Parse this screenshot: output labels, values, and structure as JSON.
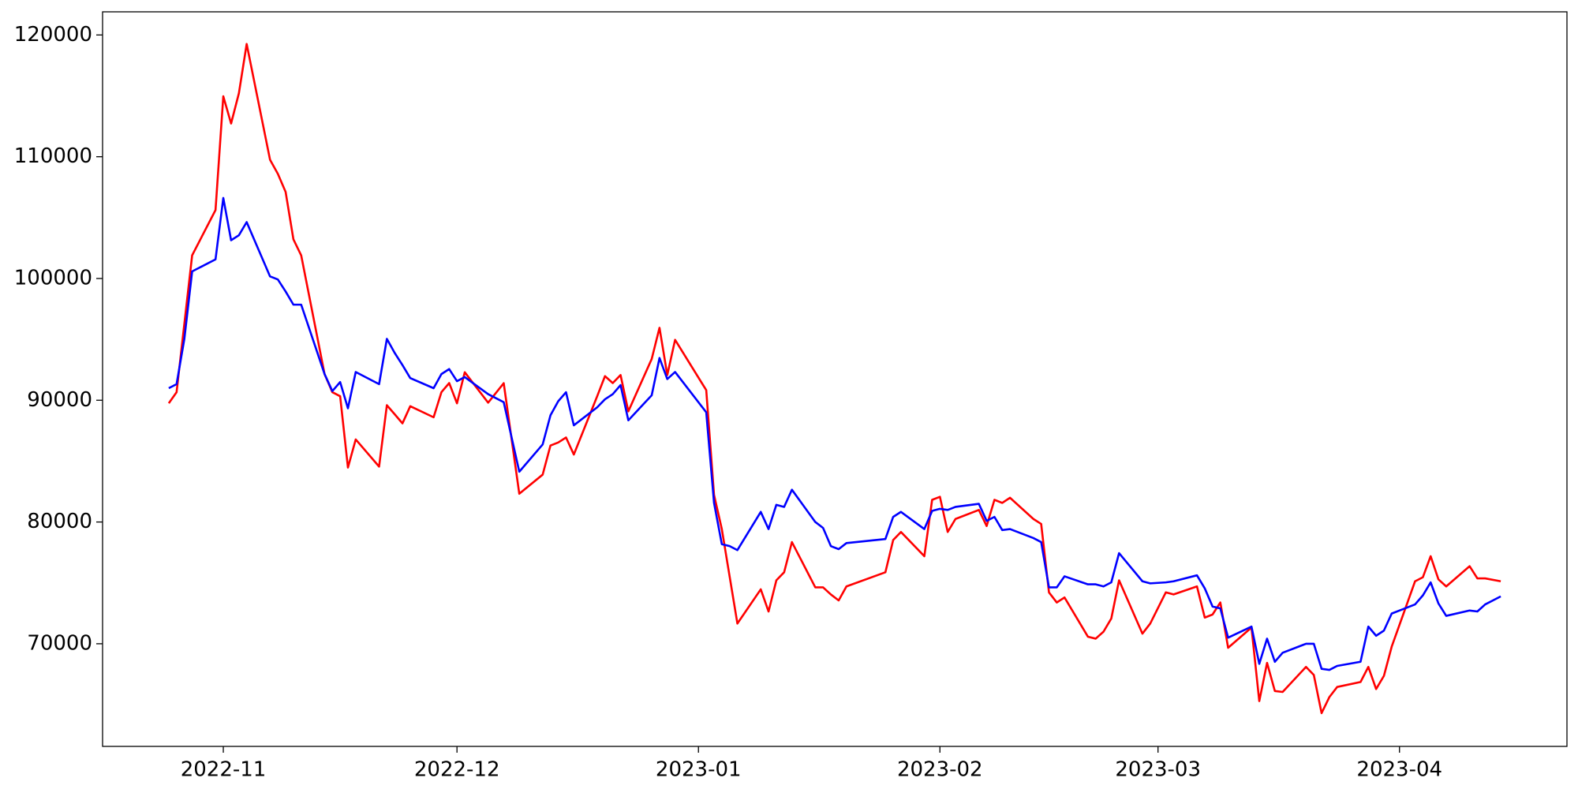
{
  "chart_data": {
    "type": "line",
    "x": [
      -7,
      -6,
      -5,
      -4,
      -1,
      0,
      1,
      2,
      3,
      6,
      7,
      8,
      9,
      10,
      13,
      14,
      15,
      16,
      17,
      20,
      21,
      22,
      23,
      24,
      27,
      28,
      29,
      30,
      31,
      34,
      36,
      38,
      41,
      42,
      43,
      44,
      45,
      48,
      49,
      50,
      51,
      52,
      55,
      56,
      57,
      58,
      62,
      63,
      64,
      65,
      66,
      69,
      70,
      71,
      72,
      73,
      76,
      77,
      78,
      79,
      80,
      85,
      86,
      87,
      90,
      91,
      92,
      93,
      94,
      97,
      98,
      99,
      100,
      101,
      104,
      105,
      106,
      107,
      108,
      111,
      112,
      113,
      114,
      115,
      118,
      119,
      121,
      122,
      125,
      126,
      127,
      128,
      129,
      132,
      133,
      134,
      135,
      136,
      139,
      140,
      141,
      142,
      143,
      146,
      147,
      148,
      149,
      150,
      153,
      154,
      155,
      156,
      157,
      160,
      161,
      162,
      164
    ],
    "series": [
      {
        "color": "#ff0000",
        "values": [
          89750,
          90660,
          96280,
          101900,
          105620,
          114960,
          112730,
          115210,
          119260,
          109750,
          108600,
          107110,
          103220,
          101900,
          92150,
          90660,
          90330,
          84470,
          86780,
          84550,
          89590,
          88850,
          88100,
          89510,
          88600,
          90660,
          91410,
          89750,
          92300,
          89800,
          91400,
          82320,
          83890,
          86280,
          86530,
          86940,
          85540,
          90330,
          91980,
          91410,
          92070,
          89090,
          93390,
          95950,
          92070,
          94960,
          90830,
          82230,
          79420,
          75540,
          71660,
          74470,
          72650,
          75210,
          75870,
          78350,
          74630,
          74630,
          74050,
          73560,
          74710,
          75870,
          78520,
          79180,
          77190,
          81820,
          82070,
          79180,
          80250,
          80990,
          79670,
          81820,
          81570,
          81990,
          80250,
          79840,
          74220,
          73390,
          73800,
          70580,
          70420,
          70990,
          72070,
          75210,
          70830,
          71660,
          74220,
          74050,
          74710,
          72150,
          72400,
          73390,
          69670,
          71330,
          65290,
          68430,
          66120,
          66040,
          68100,
          67440,
          64300,
          65620,
          66450,
          66860,
          68100,
          66280,
          67360,
          69760,
          75130,
          75460,
          77190,
          75290,
          74710,
          76370,
          75370,
          75370,
          75130
        ]
      },
      {
        "color": "#0000ff",
        "values": [
          90990,
          91320,
          95040,
          100580,
          101570,
          106610,
          103140,
          103550,
          104630,
          100170,
          99920,
          98930,
          97850,
          97850,
          92150,
          90750,
          91490,
          89340,
          92320,
          91320,
          95040,
          93890,
          92890,
          91820,
          90990,
          92150,
          92560,
          91570,
          91900,
          90500,
          89840,
          84130,
          86370,
          88760,
          89920,
          90660,
          87940,
          89420,
          90080,
          90500,
          91240,
          88350,
          90410,
          93470,
          91740,
          92320,
          89010,
          81570,
          78180,
          78020,
          77690,
          80830,
          79420,
          81410,
          81240,
          82650,
          80000,
          79510,
          78020,
          77770,
          78270,
          78600,
          80420,
          80830,
          79420,
          80910,
          81080,
          80990,
          81240,
          81490,
          80090,
          80420,
          79340,
          79420,
          78680,
          78350,
          74630,
          74630,
          75540,
          74880,
          74880,
          74710,
          75040,
          77440,
          75130,
          74960,
          75040,
          75130,
          75620,
          74550,
          73060,
          72900,
          70500,
          71410,
          68350,
          70420,
          68520,
          69260,
          70000,
          70000,
          67940,
          67850,
          68180,
          68520,
          71410,
          70660,
          71080,
          72480,
          73230,
          73970,
          75040,
          73310,
          72290,
          72730,
          72650,
          73230,
          73890
        ]
      }
    ],
    "xlim": [
      -15.5,
      172.5
    ],
    "xticks": [
      {
        "value": 0,
        "label": "2022-11"
      },
      {
        "value": 30,
        "label": "2022-12"
      },
      {
        "value": 61,
        "label": "2023-01"
      },
      {
        "value": 92,
        "label": "2023-02"
      },
      {
        "value": 120,
        "label": "2023-03"
      },
      {
        "value": 151,
        "label": "2023-04"
      }
    ],
    "ylim": [
      61570,
      121900
    ],
    "yticks": [
      70000,
      80000,
      90000,
      100000,
      110000,
      120000
    ],
    "grid": false
  }
}
